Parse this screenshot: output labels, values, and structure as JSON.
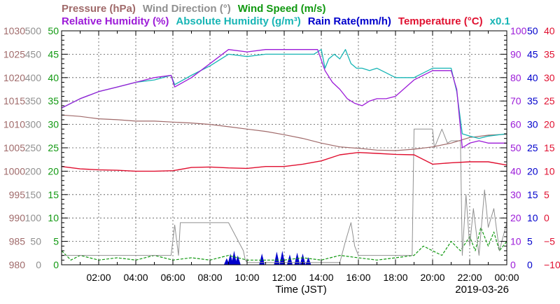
{
  "chart_data": {
    "type": "line",
    "date_label": "2019-03-26",
    "xlabel": "Time (JST)",
    "x_ticks": [
      "02:00",
      "04:00",
      "06:00",
      "08:00",
      "10:00",
      "12:00",
      "14:00",
      "16:00",
      "18:00",
      "20:00",
      "22:00",
      "00:00"
    ],
    "x_range_hours": [
      0,
      24
    ],
    "legend_rows": [
      [
        {
          "text": "Pressure (hPa)",
          "color": "#a06a6a"
        },
        {
          "text": "Wind Direction (°)",
          "color": "#909090"
        },
        {
          "text": "Wind Speed (m/s)",
          "color": "#119911"
        }
      ],
      [
        {
          "text": "Relative Humidity (%)",
          "color": "#9c1bd8"
        },
        {
          "text": "Absolute Humidity (g/m³)",
          "color": "#17b5b5"
        },
        {
          "text": "Rain Rate(mm/h)",
          "color": "#0000cc"
        },
        {
          "text": "Temperature (°C)",
          "color": "#e01030"
        },
        {
          "text": "x0.1",
          "color": "#17b5b5"
        }
      ]
    ],
    "axes": {
      "pressure": {
        "color": "#a06a6a",
        "min": 980,
        "max": 1030,
        "ticks": [
          "980",
          "985",
          "990",
          "995",
          "1000",
          "1005",
          "1010",
          "1015",
          "1020",
          "1025",
          "1030"
        ]
      },
      "wind_direction": {
        "color": "#909090",
        "min": 0,
        "max": 500,
        "ticks": [
          "0",
          "50",
          "100",
          "150",
          "200",
          "250",
          "300",
          "350",
          "400",
          "450",
          "500"
        ]
      },
      "wind_speed": {
        "color": "#119911",
        "min": 0,
        "max": 50,
        "ticks": [
          "0",
          "5",
          "10",
          "15",
          "20",
          "25",
          "30",
          "35",
          "40",
          "45",
          "50"
        ]
      },
      "relative_humidity": {
        "color": "#9c1bd8",
        "min": 0,
        "max": 100,
        "ticks": [
          "0",
          "10",
          "20",
          "30",
          "40",
          "50",
          "60",
          "70",
          "80",
          "90",
          "100"
        ]
      },
      "rain_rate": {
        "color": "#0000cc",
        "min": 0,
        "max": 50,
        "ticks": [
          "0",
          "5",
          "10",
          "15",
          "20",
          "25",
          "30",
          "35",
          "40",
          "45",
          "50"
        ]
      },
      "temperature": {
        "color": "#e01030",
        "min": -10,
        "max": 40,
        "ticks": [
          "−10",
          "−5",
          "0",
          "5",
          "10",
          "15",
          "20",
          "25",
          "30",
          "35",
          "40"
        ]
      }
    },
    "series": [
      {
        "name": "Pressure (hPa)",
        "color": "#a06a6a",
        "axis": "pressure",
        "x": [
          0,
          1,
          2,
          3,
          4,
          5,
          6,
          7,
          8,
          9,
          10,
          11,
          12,
          13,
          14,
          15,
          16,
          17,
          18,
          19,
          20,
          21,
          22,
          23,
          24
        ],
        "y": [
          1012,
          1011.7,
          1011.2,
          1011,
          1010.7,
          1010.7,
          1010.5,
          1010.3,
          1010,
          1009.5,
          1009,
          1008.5,
          1007.8,
          1007,
          1006,
          1005.2,
          1004.9,
          1004.5,
          1004.4,
          1004.7,
          1005.2,
          1006,
          1007.2,
          1007.7,
          1007.9
        ]
      },
      {
        "name": "Wind Direction (°)",
        "color": "#909090",
        "axis": "wind_direction",
        "x": [
          0,
          1,
          2,
          3,
          4,
          5,
          5.9,
          6.1,
          6.3,
          6.4,
          7,
          8,
          9,
          9.8,
          9.9,
          10,
          11,
          12,
          13,
          14,
          14.5,
          15,
          15.3,
          15.6,
          15.8,
          16,
          16.3,
          16.6,
          17,
          18,
          18.9,
          19,
          19.5,
          20,
          20.1,
          20.5,
          20.8,
          21,
          21.5,
          21.6,
          21.8,
          22,
          22.2,
          22.5,
          22.8,
          23,
          23.3,
          23.6,
          24
        ],
        "y": [
          20,
          20,
          20,
          20,
          20,
          20,
          20,
          85,
          20,
          90,
          90,
          90,
          90,
          30,
          10,
          5,
          5,
          5,
          5,
          5,
          5,
          5,
          50,
          90,
          40,
          20,
          20,
          20,
          20,
          20,
          20,
          290,
          290,
          290,
          250,
          290,
          260,
          265,
          265,
          20,
          150,
          40,
          120,
          20,
          160,
          80,
          120,
          30,
          90
        ]
      },
      {
        "name": "Wind Speed (m/s)",
        "color": "#119911",
        "axis": "wind_speed",
        "x": [
          0,
          0.5,
          1,
          2,
          3,
          4,
          5,
          6,
          7,
          8,
          9,
          10,
          11,
          12,
          13,
          14,
          15,
          16,
          17,
          18,
          19,
          19.5,
          20,
          20.5,
          21,
          21.5,
          22,
          22.3,
          22.6,
          23,
          23.3,
          23.6,
          24
        ],
        "y": [
          3,
          1,
          2,
          1,
          1.5,
          1,
          2,
          1,
          1.5,
          1,
          2,
          1,
          1,
          1,
          1.5,
          1,
          2,
          1.5,
          1,
          1.5,
          2,
          4,
          3,
          2,
          5,
          3,
          6,
          3,
          8,
          4,
          7,
          3,
          5
        ]
      },
      {
        "name": "Relative Humidity (%)",
        "color": "#9c1bd8",
        "axis": "relative_humidity",
        "x": [
          0,
          1,
          2,
          3,
          4,
          5,
          5.9,
          6.1,
          7,
          8,
          9,
          10,
          11,
          12,
          13,
          13.8,
          14.2,
          14.6,
          15,
          15.4,
          15.8,
          16.2,
          16.6,
          17,
          17.5,
          18,
          19,
          20,
          21,
          21.3,
          21.6,
          22,
          22.5,
          23,
          24
        ],
        "y": [
          67,
          71,
          74,
          76,
          78,
          80,
          81,
          76,
          80,
          86,
          92,
          91,
          92,
          92,
          92,
          92,
          83,
          78,
          75,
          71,
          69,
          68,
          70,
          71,
          71,
          72,
          79,
          83,
          83,
          75,
          50,
          52,
          53,
          52,
          52
        ]
      },
      {
        "name": "Absolute Humidity (g/m³)",
        "color": "#17b5b5",
        "axis": "wind_speed",
        "x": [
          0,
          1,
          2,
          3,
          4,
          5,
          5.9,
          6.1,
          7,
          8,
          9,
          10,
          11,
          12,
          13,
          13.6,
          14,
          14.2,
          14.4,
          14.7,
          15,
          15.3,
          15.6,
          15.9,
          16.2,
          16.6,
          17,
          17.5,
          18,
          19,
          20,
          21,
          21.3,
          21.6,
          22,
          22.5,
          23,
          24
        ],
        "y": [
          33.5,
          35.5,
          37,
          38,
          39,
          39.5,
          40.5,
          38.5,
          40.5,
          42.5,
          45,
          44.5,
          45,
          45,
          45,
          45,
          46,
          42,
          44,
          45,
          44,
          46,
          43,
          42,
          42,
          41.5,
          42,
          41,
          40,
          40,
          42,
          42,
          37,
          28,
          27.5,
          27,
          27.5,
          28
        ]
      },
      {
        "name": "Rain Rate(mm/h)",
        "color": "#0000cc",
        "axis": "rain_rate",
        "bars": [
          [
            8.9,
            1.4
          ],
          [
            9.1,
            2.4
          ],
          [
            9.3,
            3.0
          ],
          [
            9.5,
            2.0
          ],
          [
            10.8,
            2.4
          ],
          [
            11.6,
            2.8
          ],
          [
            11.9,
            3.0
          ],
          [
            12.3,
            2.2
          ],
          [
            12.7,
            2.6
          ],
          [
            13.0,
            2.4
          ],
          [
            13.3,
            1.6
          ]
        ]
      },
      {
        "name": "Temperature (°C)",
        "color": "#e01030",
        "axis": "temperature",
        "x": [
          0,
          1,
          2,
          3,
          4,
          5,
          6,
          7,
          8,
          9,
          10,
          11,
          12,
          13,
          14,
          15,
          16,
          17,
          18,
          19,
          20,
          21,
          22,
          23,
          24
        ],
        "y": [
          11,
          10.5,
          10.3,
          10.2,
          10,
          10,
          10.1,
          10.8,
          10.9,
          10.7,
          10.6,
          11,
          11,
          11.5,
          12.2,
          13.5,
          14,
          13.8,
          13.6,
          13.5,
          11.5,
          11.8,
          12,
          12,
          11.3
        ]
      }
    ]
  }
}
